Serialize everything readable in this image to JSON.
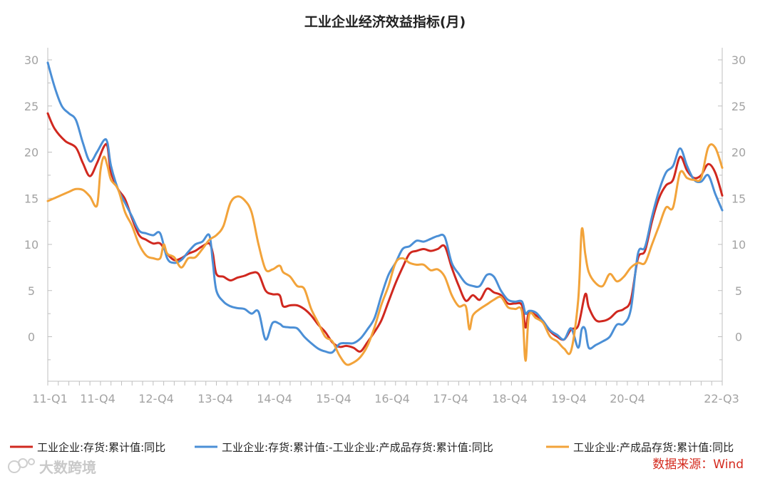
{
  "chart_data": {
    "type": "line",
    "title": "工业企业经济效益指标(月)",
    "xlabel": "",
    "ylabel": "",
    "x_tick_labels": [
      "11-Q1",
      "11-Q4",
      "12-Q4",
      "13-Q4",
      "14-Q4",
      "15-Q4",
      "16-Q4",
      "17-Q4",
      "18-Q4",
      "19-Q4",
      "20-Q4",
      "22-Q3"
    ],
    "y_ticks": [
      0,
      5,
      10,
      15,
      20,
      25,
      30
    ],
    "ylim": [
      -4.5,
      31
    ],
    "y_axis_left": true,
    "y_axis_right": true,
    "grid": false,
    "legend_position": "bottom",
    "x_month_index_note_unused": "",
    "series": [
      {
        "name": "工业企业:存货:累计值:同比",
        "color": "#d0281f",
        "points": [
          [
            0,
            24.2
          ],
          [
            2,
            22.5
          ],
          [
            5,
            21.2
          ],
          [
            8,
            20.5
          ],
          [
            10,
            18.8
          ],
          [
            12,
            17.4
          ],
          [
            14,
            18.8
          ],
          [
            16,
            20.6
          ],
          [
            17,
            20.6
          ],
          [
            18,
            17.8
          ],
          [
            20,
            16
          ],
          [
            22,
            14.9
          ],
          [
            24,
            12.8
          ],
          [
            26,
            11
          ],
          [
            28,
            10.5
          ],
          [
            30,
            10.1
          ],
          [
            32,
            10.1
          ],
          [
            34,
            9
          ],
          [
            36,
            8.3
          ],
          [
            38,
            8.5
          ],
          [
            40,
            9
          ],
          [
            42,
            9.3
          ],
          [
            44,
            9.8
          ],
          [
            46,
            10.1
          ],
          [
            47,
            9
          ],
          [
            48,
            6.8
          ],
          [
            50,
            6.5
          ],
          [
            52,
            6.1
          ],
          [
            54,
            6.4
          ],
          [
            56,
            6.6
          ],
          [
            58,
            6.9
          ],
          [
            60,
            6.8
          ],
          [
            62,
            5
          ],
          [
            64,
            4.6
          ],
          [
            66,
            4.5
          ],
          [
            67,
            3.3
          ],
          [
            69,
            3.4
          ],
          [
            71,
            3.4
          ],
          [
            73,
            3
          ],
          [
            75,
            2.3
          ],
          [
            77,
            1.3
          ],
          [
            79,
            0.5
          ],
          [
            81,
            -0.6
          ],
          [
            83,
            -1.1
          ],
          [
            85,
            -1
          ],
          [
            87,
            -1.2
          ],
          [
            89,
            -1.6
          ],
          [
            91,
            -0.6
          ],
          [
            93,
            0.5
          ],
          [
            95,
            1.8
          ],
          [
            97,
            3.8
          ],
          [
            99,
            5.8
          ],
          [
            101,
            7.5
          ],
          [
            103,
            9
          ],
          [
            105,
            9.3
          ],
          [
            107,
            9.5
          ],
          [
            109,
            9.3
          ],
          [
            111,
            9.5
          ],
          [
            113,
            9.8
          ],
          [
            115,
            7.5
          ],
          [
            117,
            5.5
          ],
          [
            119,
            3.9
          ],
          [
            121,
            4.5
          ],
          [
            123,
            4
          ],
          [
            125,
            5.2
          ],
          [
            127,
            4.8
          ],
          [
            129,
            4.5
          ],
          [
            131,
            3.6
          ],
          [
            133,
            3.6
          ],
          [
            135,
            3.4
          ],
          [
            136,
            1
          ],
          [
            137,
            2.6
          ],
          [
            139,
            2.3
          ],
          [
            141,
            1.7
          ],
          [
            143,
            0.6
          ],
          [
            145,
            0
          ],
          [
            147,
            -0.3
          ],
          [
            149,
            0.8
          ],
          [
            151,
            1.2
          ],
          [
            153,
            4.6
          ],
          [
            154,
            3.2
          ],
          [
            156,
            1.8
          ],
          [
            158,
            1.7
          ],
          [
            160,
            2
          ],
          [
            162,
            2.7
          ],
          [
            164,
            3
          ],
          [
            166,
            4
          ],
          [
            168,
            8.5
          ],
          [
            170,
            9.3
          ],
          [
            172,
            12.5
          ],
          [
            174,
            15
          ],
          [
            176,
            16.4
          ],
          [
            178,
            17
          ],
          [
            180,
            19.5
          ],
          [
            182,
            18
          ],
          [
            184,
            17.2
          ],
          [
            186,
            17.5
          ],
          [
            188,
            18.7
          ],
          [
            190,
            17.8
          ],
          [
            192,
            15.3
          ]
        ]
      },
      {
        "name": "工业企业:存货:累计值:-工业企业:产成品存货:累计值:同比",
        "color": "#4b8fd6",
        "points": [
          [
            0,
            29.7
          ],
          [
            2,
            27
          ],
          [
            4,
            25
          ],
          [
            6,
            24.2
          ],
          [
            8,
            23.5
          ],
          [
            10,
            21
          ],
          [
            12,
            19
          ],
          [
            14,
            20
          ],
          [
            16,
            21.3
          ],
          [
            17,
            21
          ],
          [
            18,
            18.5
          ],
          [
            20,
            16
          ],
          [
            22,
            14.5
          ],
          [
            24,
            13
          ],
          [
            26,
            11.5
          ],
          [
            28,
            11.2
          ],
          [
            30,
            11
          ],
          [
            32,
            11.2
          ],
          [
            34,
            8.5
          ],
          [
            36,
            8
          ],
          [
            38,
            8.3
          ],
          [
            40,
            9.2
          ],
          [
            42,
            10
          ],
          [
            44,
            10.3
          ],
          [
            46,
            11
          ],
          [
            47,
            8
          ],
          [
            48,
            5
          ],
          [
            50,
            3.8
          ],
          [
            52,
            3.3
          ],
          [
            54,
            3.1
          ],
          [
            56,
            3
          ],
          [
            58,
            2.5
          ],
          [
            60,
            2.7
          ],
          [
            62,
            -0.3
          ],
          [
            64,
            1.5
          ],
          [
            66,
            1.4
          ],
          [
            67,
            1.1
          ],
          [
            69,
            1
          ],
          [
            71,
            0.9
          ],
          [
            73,
            0
          ],
          [
            75,
            -0.7
          ],
          [
            77,
            -1.3
          ],
          [
            79,
            -1.6
          ],
          [
            81,
            -1.7
          ],
          [
            83,
            -0.8
          ],
          [
            85,
            -0.7
          ],
          [
            87,
            -0.7
          ],
          [
            89,
            -0.2
          ],
          [
            91,
            0.8
          ],
          [
            93,
            2
          ],
          [
            95,
            4.5
          ],
          [
            97,
            6.7
          ],
          [
            99,
            8
          ],
          [
            101,
            9.5
          ],
          [
            103,
            9.8
          ],
          [
            105,
            10.4
          ],
          [
            107,
            10.3
          ],
          [
            109,
            10.6
          ],
          [
            111,
            10.9
          ],
          [
            113,
            10.8
          ],
          [
            115,
            8
          ],
          [
            117,
            6.8
          ],
          [
            119,
            5.8
          ],
          [
            121,
            5.5
          ],
          [
            123,
            5.5
          ],
          [
            125,
            6.7
          ],
          [
            127,
            6.5
          ],
          [
            129,
            5
          ],
          [
            131,
            4
          ],
          [
            133,
            3.8
          ],
          [
            135,
            3.8
          ],
          [
            136,
            2.5
          ],
          [
            137,
            2.8
          ],
          [
            139,
            2.6
          ],
          [
            141,
            1.7
          ],
          [
            143,
            0.7
          ],
          [
            145,
            0.2
          ],
          [
            147,
            -0.3
          ],
          [
            149,
            0.9
          ],
          [
            151,
            -1.2
          ],
          [
            152,
            0.8
          ],
          [
            153,
            0.8
          ],
          [
            154,
            -1.2
          ],
          [
            156,
            -0.9
          ],
          [
            158,
            -0.5
          ],
          [
            160,
            0
          ],
          [
            162,
            1.3
          ],
          [
            164,
            1.4
          ],
          [
            166,
            3
          ],
          [
            168,
            9
          ],
          [
            170,
            9.7
          ],
          [
            172,
            13
          ],
          [
            174,
            15.8
          ],
          [
            176,
            17.8
          ],
          [
            178,
            18.5
          ],
          [
            180,
            20.4
          ],
          [
            182,
            18.5
          ],
          [
            184,
            17
          ],
          [
            186,
            16.8
          ],
          [
            188,
            17.5
          ],
          [
            190,
            15.5
          ],
          [
            192,
            13.7
          ]
        ]
      },
      {
        "name": "工业企业:产成品存货:累计值:同比",
        "color": "#f2a33a",
        "points": [
          [
            0,
            14.7
          ],
          [
            3,
            15.2
          ],
          [
            6,
            15.7
          ],
          [
            8,
            16
          ],
          [
            10,
            15.9
          ],
          [
            12,
            15.2
          ],
          [
            14,
            14.2
          ],
          [
            15,
            18
          ],
          [
            16,
            19.5
          ],
          [
            17,
            18.5
          ],
          [
            18,
            17
          ],
          [
            20,
            16
          ],
          [
            22,
            13.5
          ],
          [
            24,
            12
          ],
          [
            26,
            10
          ],
          [
            28,
            8.8
          ],
          [
            30,
            8.5
          ],
          [
            32,
            8.5
          ],
          [
            33,
            10
          ],
          [
            34,
            9
          ],
          [
            36,
            8.6
          ],
          [
            38,
            7.5
          ],
          [
            40,
            8.5
          ],
          [
            42,
            8.6
          ],
          [
            44,
            9.5
          ],
          [
            46,
            10.5
          ],
          [
            48,
            11
          ],
          [
            50,
            12
          ],
          [
            52,
            14.5
          ],
          [
            54,
            15.2
          ],
          [
            56,
            14.8
          ],
          [
            58,
            13.5
          ],
          [
            60,
            10
          ],
          [
            62,
            7.3
          ],
          [
            64,
            7.3
          ],
          [
            66,
            7.7
          ],
          [
            67,
            7
          ],
          [
            69,
            6.5
          ],
          [
            71,
            5.5
          ],
          [
            73,
            5.2
          ],
          [
            75,
            3
          ],
          [
            77,
            1.5
          ],
          [
            79,
            0
          ],
          [
            81,
            -0.5
          ],
          [
            83,
            -2
          ],
          [
            85,
            -3
          ],
          [
            87,
            -2.8
          ],
          [
            89,
            -2.2
          ],
          [
            91,
            -1
          ],
          [
            93,
            1
          ],
          [
            95,
            3.5
          ],
          [
            97,
            5.5
          ],
          [
            99,
            8
          ],
          [
            101,
            8.5
          ],
          [
            103,
            8
          ],
          [
            105,
            7.8
          ],
          [
            107,
            7.8
          ],
          [
            109,
            7.2
          ],
          [
            111,
            7.3
          ],
          [
            113,
            6.5
          ],
          [
            115,
            4.5
          ],
          [
            117,
            3.3
          ],
          [
            119,
            3.3
          ],
          [
            120,
            0.8
          ],
          [
            121,
            2.3
          ],
          [
            123,
            3
          ],
          [
            125,
            3.5
          ],
          [
            127,
            4
          ],
          [
            129,
            4.3
          ],
          [
            131,
            3.2
          ],
          [
            133,
            3
          ],
          [
            135,
            2.7
          ],
          [
            136,
            -2.6
          ],
          [
            137,
            2.3
          ],
          [
            139,
            2
          ],
          [
            141,
            1.5
          ],
          [
            143,
            0
          ],
          [
            145,
            -0.5
          ],
          [
            147,
            -1.3
          ],
          [
            149,
            -1.5
          ],
          [
            151,
            4
          ],
          [
            152,
            11.6
          ],
          [
            153,
            9
          ],
          [
            154,
            7
          ],
          [
            156,
            5.8
          ],
          [
            158,
            5.5
          ],
          [
            160,
            6.8
          ],
          [
            162,
            6
          ],
          [
            164,
            6.5
          ],
          [
            166,
            7.5
          ],
          [
            168,
            8
          ],
          [
            170,
            8
          ],
          [
            172,
            10
          ],
          [
            174,
            12
          ],
          [
            176,
            14
          ],
          [
            178,
            14
          ],
          [
            180,
            17.8
          ],
          [
            182,
            17.2
          ],
          [
            184,
            17
          ],
          [
            186,
            17.2
          ],
          [
            188,
            20.5
          ],
          [
            190,
            20.5
          ],
          [
            192,
            18.3
          ]
        ]
      }
    ]
  },
  "source_text": "数据来源：Wind",
  "watermark_text": "大数跨境"
}
